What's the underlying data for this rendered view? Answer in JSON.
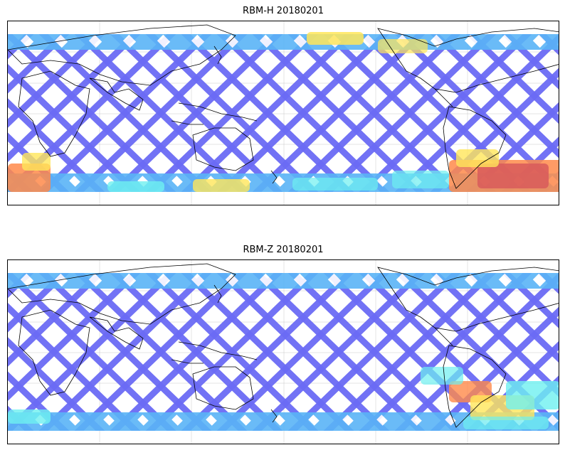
{
  "figure": {
    "panels": [
      {
        "id": "rbm-h",
        "title": "RBM-H 20180201"
      },
      {
        "id": "rbm-z",
        "title": "RBM-Z 20180201"
      }
    ]
  },
  "colors": {
    "low": "#6b6bf5",
    "low_mid": "#5ab4f7",
    "mid": "#6ef0f0",
    "mid_high": "#ffe65a",
    "high": "#ff8a4a",
    "max": "#d85a5a",
    "coastline": "#000000",
    "grid": "#b0b0b0"
  }
}
